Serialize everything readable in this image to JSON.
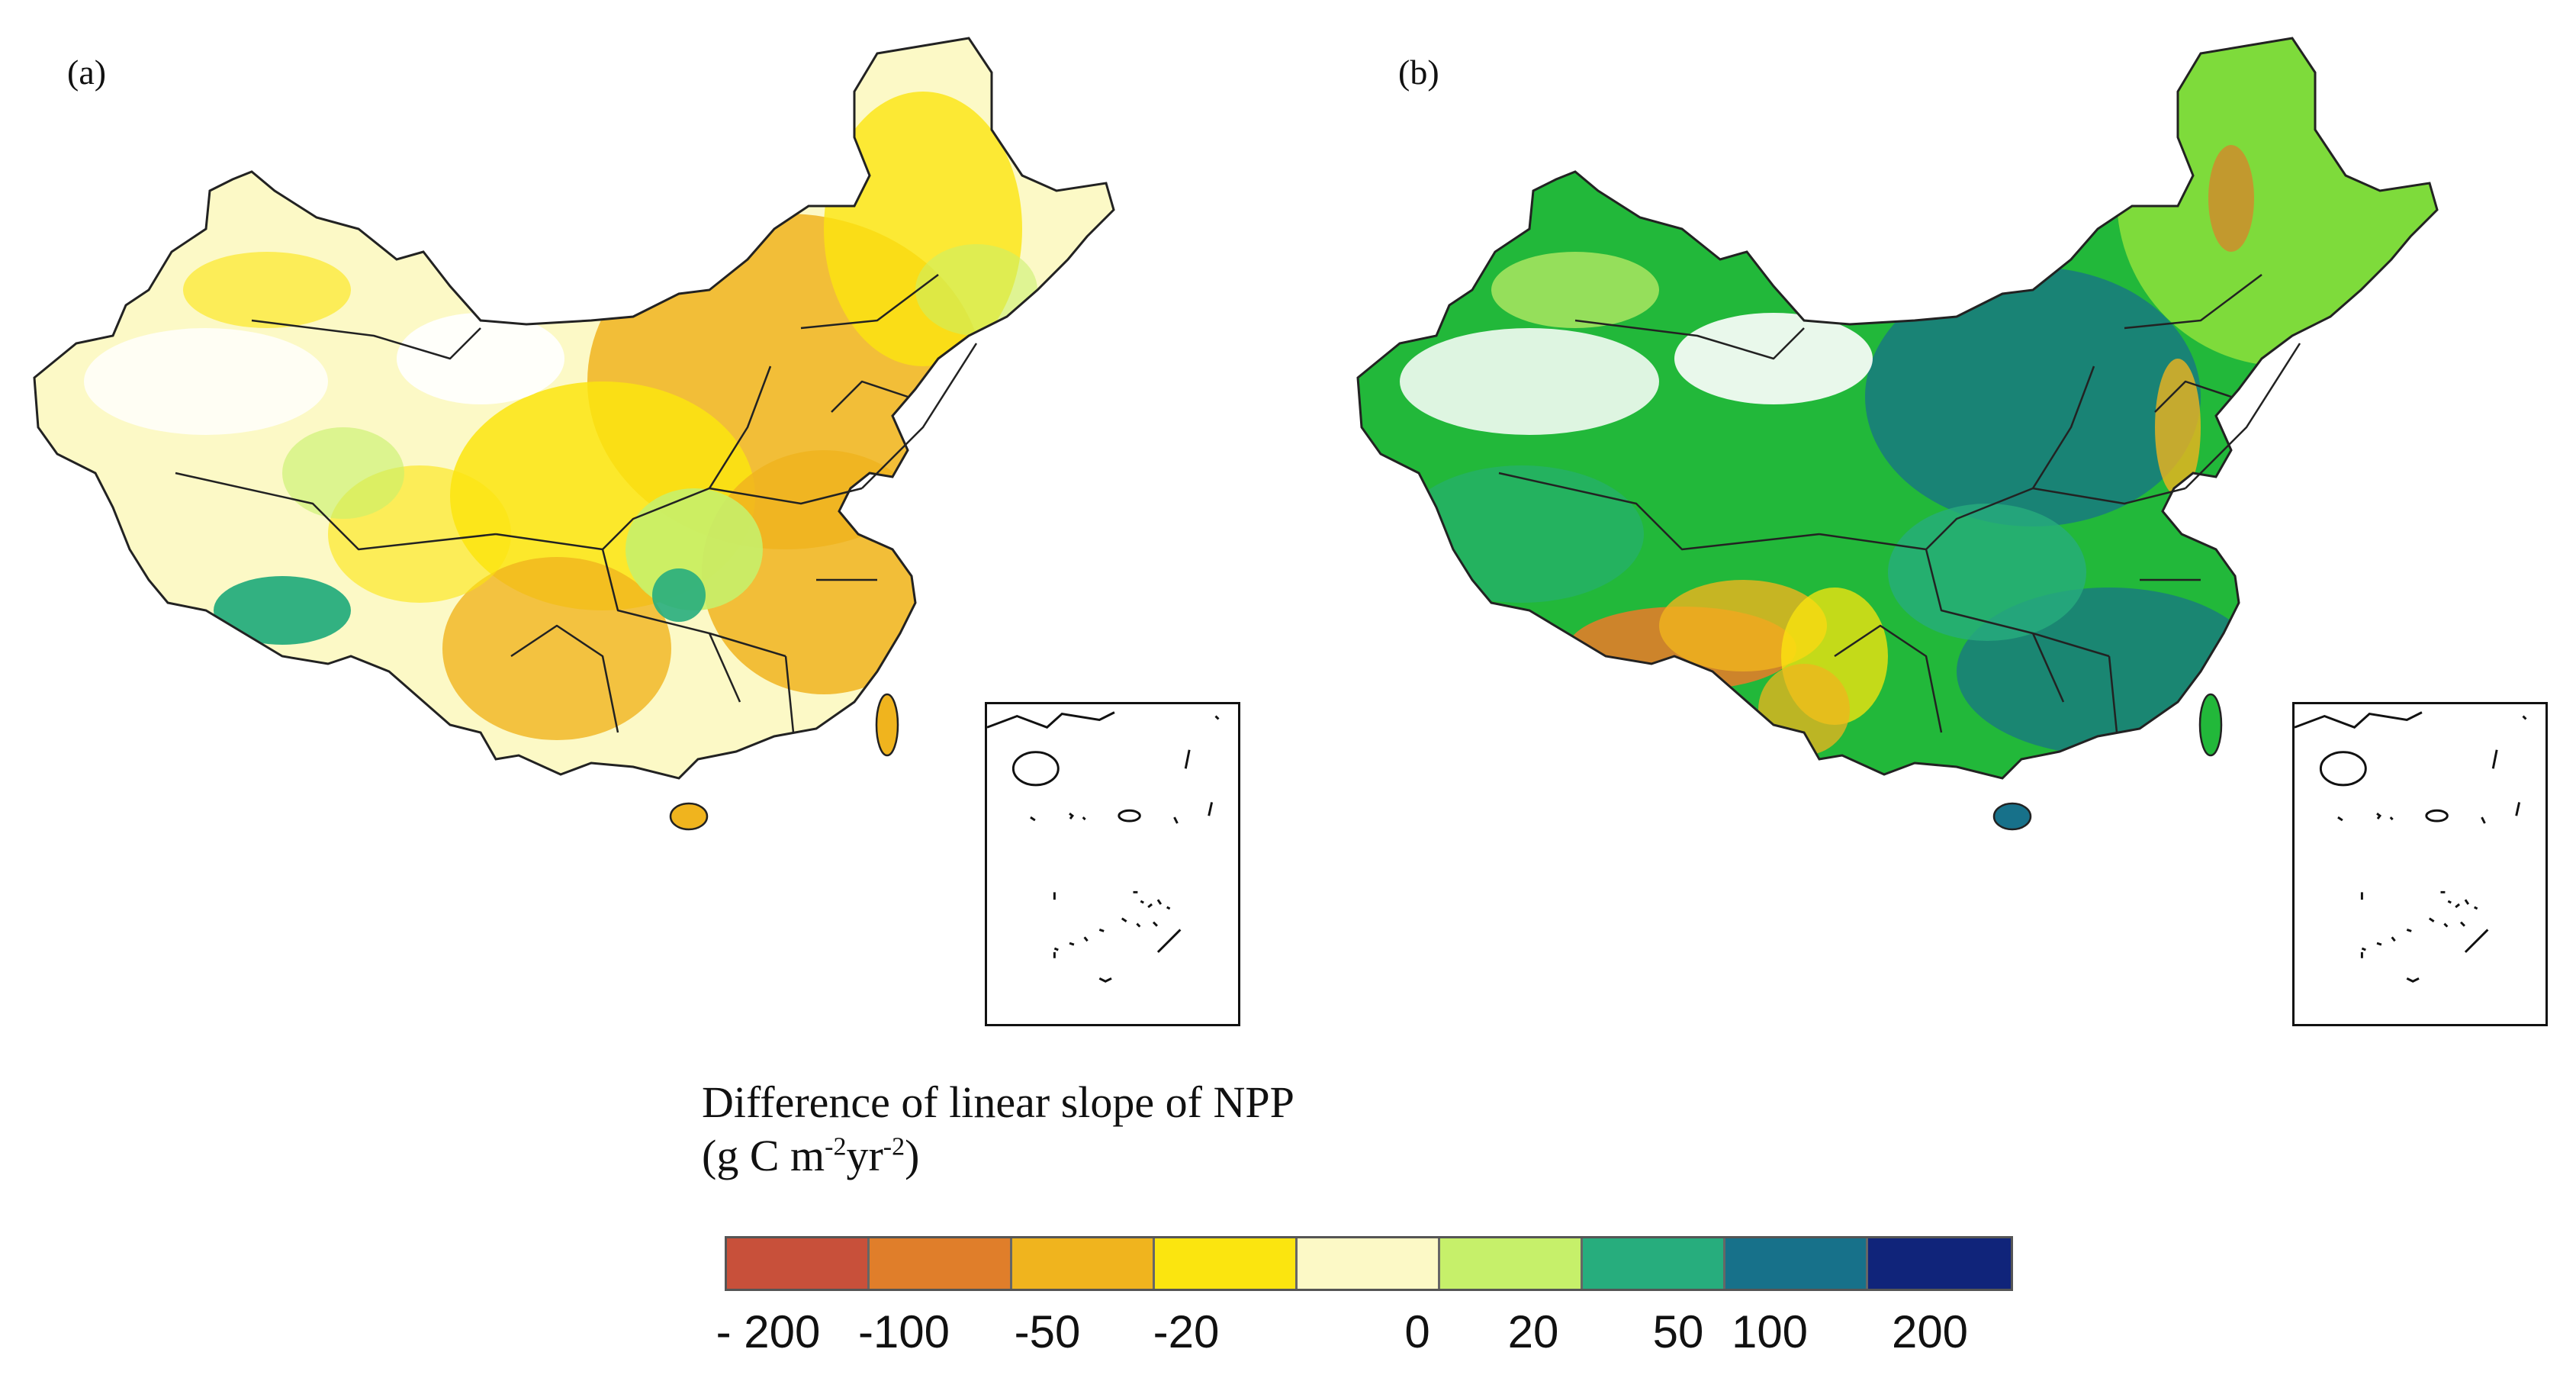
{
  "panels": [
    {
      "label": "(a)"
    },
    {
      "label": "(b)"
    }
  ],
  "legend": {
    "title": "Difference of linear slope of NPP",
    "unit_prefix": "(g C m",
    "unit_exp1": "-2",
    "unit_mid": "yr",
    "unit_exp2": "-2",
    "unit_suffix": ")",
    "bins": [
      {
        "color": "#c8503a"
      },
      {
        "color": "#e07e2a"
      },
      {
        "color": "#f0b41e"
      },
      {
        "color": "#fbe50f"
      },
      {
        "color": "#fcf9c6"
      },
      {
        "color": "#c6f06a"
      },
      {
        "color": "#27ad7d"
      },
      {
        "color": "#17718a"
      },
      {
        "color": "#10247a"
      }
    ],
    "ticks": [
      "- 200",
      "-100",
      "-50",
      "-20",
      "0",
      "20",
      "50",
      "100",
      "200"
    ]
  },
  "colors": {
    "outline": "#222222",
    "background": "#ffffff"
  }
}
